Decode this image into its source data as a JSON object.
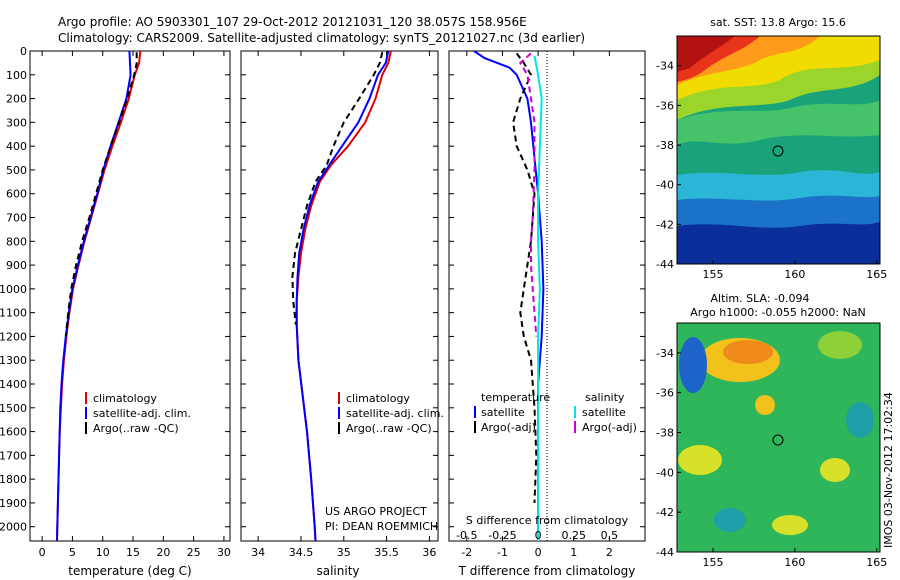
{
  "header": {
    "line1": "Argo profile: AO 5903301_107 29-Oct-2012 20121031_120 38.057S 158.956E",
    "line2": "Climatology: CARS2009. Satellite-adjusted climatology: synTS_20121027.nc (3d earlier)"
  },
  "side_stamp": "IMOS 03-Nov-2012 17:02:34",
  "project": {
    "line1": "US ARGO PROJECT",
    "line2": "PI: DEAN ROEMMICH"
  },
  "colors": {
    "climatology": "#e00000",
    "satellite": "#0000ff",
    "argo": "#000000",
    "satellite_s": "#00e5e5",
    "argo_s": "#cc00cc"
  },
  "chart_data": [
    {
      "id": "temperature",
      "type": "line",
      "xlabel": "temperature (deg C)",
      "ylabel": "",
      "xlim": [
        -2,
        31
      ],
      "ylim": [
        2060,
        0
      ],
      "xticks": [
        0,
        5,
        10,
        15,
        20,
        25,
        30
      ],
      "yticks": [
        0,
        100,
        200,
        300,
        400,
        500,
        600,
        700,
        800,
        900,
        1000,
        1100,
        1200,
        1300,
        1400,
        1500,
        1600,
        1700,
        1800,
        1900,
        2000
      ],
      "legend": [
        "climatology",
        "satellite-adj. clim.",
        "Argo(..raw -QC)"
      ],
      "series": [
        {
          "name": "climatology",
          "color": "#e00000",
          "dash": "",
          "points": [
            [
              16.2,
              0
            ],
            [
              16.0,
              50
            ],
            [
              15.3,
              100
            ],
            [
              14.3,
              200
            ],
            [
              13.0,
              300
            ],
            [
              11.6,
              400
            ],
            [
              10.3,
              500
            ],
            [
              9.2,
              600
            ],
            [
              8.1,
              700
            ],
            [
              7.0,
              800
            ],
            [
              6.0,
              900
            ],
            [
              5.1,
              1000
            ],
            [
              4.5,
              1100
            ],
            [
              4.0,
              1200
            ],
            [
              3.6,
              1300
            ],
            [
              3.3,
              1400
            ],
            [
              3.1,
              1500
            ],
            [
              2.9,
              1600
            ],
            [
              2.8,
              1700
            ],
            [
              2.7,
              1800
            ],
            [
              2.6,
              1900
            ],
            [
              2.5,
              2000
            ],
            [
              2.45,
              2060
            ]
          ]
        },
        {
          "name": "satellite-adj. clim.",
          "color": "#0000ff",
          "dash": "",
          "points": [
            [
              14.4,
              0
            ],
            [
              14.5,
              50
            ],
            [
              14.6,
              100
            ],
            [
              13.9,
              200
            ],
            [
              12.6,
              300
            ],
            [
              11.3,
              400
            ],
            [
              10.1,
              500
            ],
            [
              9.1,
              600
            ],
            [
              8.0,
              700
            ],
            [
              6.9,
              800
            ],
            [
              5.9,
              900
            ],
            [
              5.0,
              1000
            ],
            [
              4.4,
              1100
            ],
            [
              3.9,
              1200
            ],
            [
              3.5,
              1300
            ],
            [
              3.2,
              1400
            ],
            [
              3.0,
              1500
            ],
            [
              2.9,
              1600
            ],
            [
              2.8,
              1700
            ],
            [
              2.7,
              1800
            ],
            [
              2.6,
              1900
            ],
            [
              2.5,
              2000
            ],
            [
              2.45,
              2060
            ]
          ]
        },
        {
          "name": "Argo(..raw -QC)",
          "color": "#000000",
          "dash": "6,4",
          "points": [
            [
              15.6,
              5
            ],
            [
              15.6,
              50
            ],
            [
              15.2,
              100
            ],
            [
              14.0,
              200
            ],
            [
              12.7,
              300
            ],
            [
              11.3,
              400
            ],
            [
              10.0,
              500
            ],
            [
              8.9,
              600
            ],
            [
              7.8,
              700
            ],
            [
              6.6,
              800
            ],
            [
              5.6,
              900
            ],
            [
              4.8,
              1000
            ],
            [
              4.3,
              1100
            ],
            [
              3.9,
              1200
            ]
          ]
        }
      ]
    },
    {
      "id": "salinity",
      "type": "line",
      "xlabel": "salinity",
      "ylabel": "",
      "xlim": [
        33.8,
        36.1
      ],
      "ylim": [
        2060,
        0
      ],
      "xticks": [
        34,
        34.5,
        35,
        35.5,
        36
      ],
      "legend": [
        "climatology",
        "satellite-adj. clim.",
        "Argo(..raw -QC)"
      ],
      "series": [
        {
          "name": "climatology",
          "color": "#e00000",
          "dash": "",
          "points": [
            [
              35.55,
              0
            ],
            [
              35.52,
              50
            ],
            [
              35.45,
              100
            ],
            [
              35.37,
              200
            ],
            [
              35.25,
              300
            ],
            [
              35.05,
              400
            ],
            [
              34.85,
              480
            ],
            [
              34.72,
              550
            ],
            [
              34.62,
              650
            ],
            [
              34.55,
              750
            ],
            [
              34.5,
              850
            ],
            [
              34.47,
              950
            ],
            [
              34.45,
              1050
            ],
            [
              34.45,
              1150
            ],
            [
              34.47,
              1300
            ],
            [
              34.52,
              1450
            ],
            [
              34.57,
              1600
            ],
            [
              34.62,
              1800
            ],
            [
              34.66,
              2000
            ],
            [
              34.67,
              2060
            ]
          ]
        },
        {
          "name": "satellite-adj. clim.",
          "color": "#0000ff",
          "dash": "",
          "points": [
            [
              35.52,
              0
            ],
            [
              35.49,
              50
            ],
            [
              35.4,
              100
            ],
            [
              35.3,
              200
            ],
            [
              35.17,
              300
            ],
            [
              34.98,
              400
            ],
            [
              34.83,
              480
            ],
            [
              34.7,
              550
            ],
            [
              34.6,
              650
            ],
            [
              34.53,
              750
            ],
            [
              34.48,
              850
            ],
            [
              34.46,
              950
            ],
            [
              34.45,
              1050
            ],
            [
              34.45,
              1150
            ],
            [
              34.47,
              1300
            ],
            [
              34.52,
              1450
            ],
            [
              34.57,
              1600
            ],
            [
              34.62,
              1800
            ],
            [
              34.66,
              2000
            ],
            [
              34.67,
              2060
            ]
          ]
        },
        {
          "name": "Argo(..raw -QC)",
          "color": "#000000",
          "dash": "6,4",
          "points": [
            [
              35.45,
              5
            ],
            [
              35.42,
              50
            ],
            [
              35.35,
              100
            ],
            [
              35.18,
              200
            ],
            [
              35.0,
              300
            ],
            [
              34.88,
              400
            ],
            [
              34.8,
              480
            ],
            [
              34.67,
              550
            ],
            [
              34.57,
              650
            ],
            [
              34.5,
              750
            ],
            [
              34.43,
              850
            ],
            [
              34.4,
              950
            ],
            [
              34.41,
              1050
            ],
            [
              34.44,
              1150
            ]
          ]
        }
      ]
    },
    {
      "id": "difference",
      "type": "line",
      "xlabel": "T difference from climatology",
      "top_axis_label": "S difference from climatology",
      "xlim": [
        -2.5,
        3
      ],
      "ylim": [
        2060,
        0
      ],
      "xticks": [
        -2,
        -1,
        0,
        1,
        2
      ],
      "top_ticks": [
        "-0.5",
        "-0.25",
        "0",
        "0.25",
        "0.5"
      ],
      "top_tick_values": [
        -2,
        -1,
        0,
        1,
        2
      ],
      "legend_headers": [
        "temperature",
        "salinity"
      ],
      "legend": [
        "satellite",
        "Argo(-adj)",
        "satellite",
        "Argo(-adj)"
      ],
      "series": [
        {
          "name": "satellite",
          "group": "temperature",
          "color": "#0000ff",
          "dash": "",
          "points": [
            [
              -1.8,
              0
            ],
            [
              -1.5,
              30
            ],
            [
              -0.8,
              70
            ],
            [
              -0.6,
              100
            ],
            [
              -0.3,
              200
            ],
            [
              -0.2,
              300
            ],
            [
              -0.1,
              450
            ],
            [
              0,
              600
            ],
            [
              0.1,
              800
            ],
            [
              0.15,
              1000
            ],
            [
              0.1,
              1200
            ],
            [
              0,
              1400
            ],
            [
              0,
              2060
            ]
          ]
        },
        {
          "name": "Argo(-adj)",
          "group": "temperature",
          "color": "#000000",
          "dash": "6,4",
          "points": [
            [
              -0.6,
              10
            ],
            [
              -0.4,
              50
            ],
            [
              -0.2,
              100
            ],
            [
              -0.5,
              200
            ],
            [
              -0.7,
              300
            ],
            [
              -0.6,
              400
            ],
            [
              -0.3,
              500
            ],
            [
              -0.1,
              600
            ],
            [
              -0.2,
              800
            ],
            [
              -0.3,
              900
            ],
            [
              -0.4,
              1000
            ],
            [
              -0.5,
              1100
            ],
            [
              -0.4,
              1200
            ],
            [
              -0.2,
              1300
            ],
            [
              -0.1,
              1500
            ],
            [
              -0.05,
              1700
            ],
            [
              -0.1,
              1900
            ]
          ]
        },
        {
          "name": "satellite",
          "group": "salinity",
          "color": "#00e5e5",
          "dash": "",
          "points": [
            [
              -0.1,
              20
            ],
            [
              0,
              100
            ],
            [
              0.1,
              200
            ],
            [
              0.05,
              400
            ],
            [
              0,
              600
            ],
            [
              0,
              800
            ],
            [
              0.05,
              1000
            ],
            [
              0,
              1200
            ],
            [
              0,
              2060
            ]
          ]
        },
        {
          "name": "Argo(-adj)",
          "group": "salinity",
          "color": "#cc00cc",
          "dash": "6,4",
          "points": [
            [
              -0.2,
              10
            ],
            [
              -0.5,
              50
            ],
            [
              -0.3,
              100
            ],
            [
              -0.2,
              200
            ],
            [
              -0.1,
              300
            ],
            [
              -0.1,
              500
            ],
            [
              -0.15,
              700
            ],
            [
              -0.2,
              800
            ],
            [
              -0.2,
              900
            ],
            [
              -0.15,
              1000
            ],
            [
              -0.1,
              1100
            ],
            [
              -0.05,
              1200
            ]
          ]
        }
      ]
    },
    {
      "id": "sst_map",
      "type": "heatmap",
      "title": "sat. SST: 13.8 Argo: 15.6",
      "xlim": [
        152.8,
        165.2
      ],
      "ylim": [
        -44,
        -32.5
      ],
      "xticks": [
        155,
        160,
        165
      ],
      "yticks": [
        -34,
        -36,
        -38,
        -40,
        -42,
        -44
      ],
      "marker": {
        "lon": 158.956,
        "lat": -38.057
      }
    },
    {
      "id": "sla_map",
      "type": "heatmap",
      "title": "Altim. SLA: -0.094",
      "subtitle": "Argo h1000: -0.055 h2000: NaN",
      "xlim": [
        152.8,
        165.2
      ],
      "ylim": [
        -44,
        -32.5
      ],
      "xticks": [
        155,
        160,
        165
      ],
      "yticks": [
        -34,
        -36,
        -38,
        -40,
        -42,
        -44
      ],
      "marker": {
        "lon": 158.956,
        "lat": -38.057
      }
    }
  ]
}
